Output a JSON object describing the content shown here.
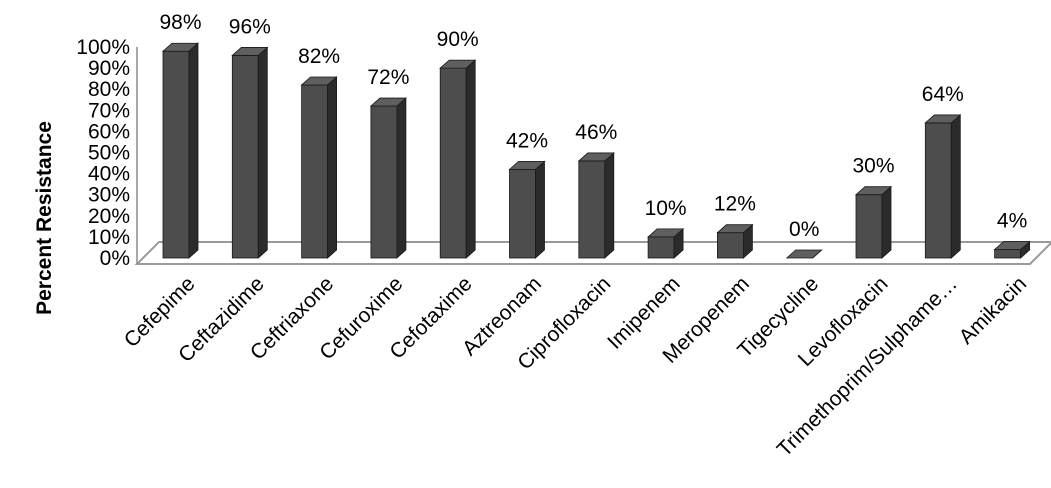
{
  "chart_data": {
    "type": "bar",
    "style": "3d-column",
    "title": "",
    "xlabel": "",
    "ylabel": "Percent Resistance",
    "ylim": [
      0,
      100
    ],
    "ytick_step": 10,
    "ytick_suffix": "%",
    "grid": false,
    "legend": "none",
    "categories": [
      "Cefepime",
      "Ceftazidime",
      "Ceftriaxone",
      "Cefuroxime",
      "Cefotaxime",
      "Aztreonam",
      "Ciprofloxacin",
      "Imipenem",
      "Meropenem",
      "Tigecycline",
      "Levofloxacin",
      "Trimethoprim/Sulphame…",
      "Amikacin"
    ],
    "values": [
      98,
      96,
      82,
      72,
      90,
      42,
      46,
      10,
      12,
      0,
      30,
      64,
      4
    ],
    "data_labels": [
      "98%",
      "96%",
      "82%",
      "72%",
      "90%",
      "42%",
      "46%",
      "10%",
      "12%",
      "0%",
      "30%",
      "64%",
      "4%"
    ],
    "colors": {
      "bar_front": "#4d4d4d",
      "bar_side": "#2b2b2b",
      "bar_top": "#5f5f5f",
      "bar_outline": "#1a1a1a",
      "floor_stroke": "#9a9a9a",
      "axis": "#8c8c8c"
    }
  }
}
